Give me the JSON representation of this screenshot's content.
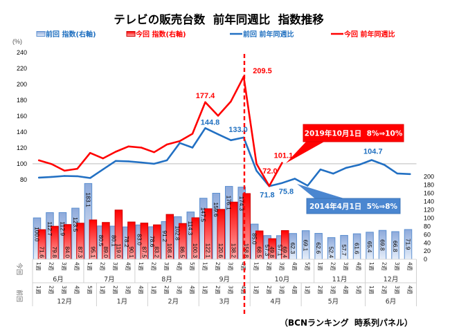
{
  "chart_data": {
    "type": "bar",
    "title": "テレビの販売台数  前年同週比  指数推移",
    "y_left": {
      "unit": "(%)",
      "range": [
        -20,
        240
      ],
      "tick_values": [
        80,
        100,
        120,
        140,
        160,
        180,
        200,
        220,
        240
      ],
      "tick_labels": [
        "80",
        "100",
        "120",
        "140",
        "160",
        "180",
        "200",
        "220",
        "240"
      ]
    },
    "y_right": {
      "range": [
        0,
        500
      ],
      "tick_values": [
        0,
        20,
        40,
        60,
        80,
        100,
        120,
        140,
        160,
        180,
        200
      ],
      "tick_labels": [
        "0",
        "20",
        "40",
        "60",
        "80",
        "100",
        "120",
        "140",
        "160",
        "180",
        "200"
      ]
    },
    "reference_line": 100,
    "grid": false,
    "x_axis": {
      "rows": [
        {
          "label": "今回",
          "groups": [
            {
              "month": "6月",
              "weeks": [
                "1週",
                "2週",
                "3週",
                "4週"
              ]
            },
            {
              "month": "7月",
              "weeks": [
                "1週",
                "2週",
                "3週",
                "4週"
              ]
            },
            {
              "month": "8月",
              "weeks": [
                "1週",
                "2週",
                "3週",
                "4週",
                "5週"
              ]
            },
            {
              "month": "9月",
              "weeks": [
                "1週",
                "2週",
                "3週",
                "4週"
              ]
            },
            {
              "month": "10月",
              "weeks": [
                "1週",
                "2週",
                "3週",
                "4週",
                "5週"
              ]
            },
            {
              "month": "11月",
              "weeks": [
                "1週",
                "2週",
                "3週",
                "4週"
              ]
            },
            {
              "month": "12月",
              "weeks": [
                "1週",
                "2週",
                "3週",
                "4週"
              ]
            }
          ]
        },
        {
          "label": "前回",
          "groups": [
            {
              "month": "12月",
              "weeks": [
                "1週",
                "2週",
                "3週",
                "4週",
                "5週"
              ]
            },
            {
              "month": "1月",
              "weeks": [
                "1週",
                "2週",
                "3週",
                "4週"
              ]
            },
            {
              "month": "2月",
              "weeks": [
                "1週",
                "2週",
                "3週",
                "4週"
              ]
            },
            {
              "month": "3月",
              "weeks": [
                "1週",
                "2週",
                "3週",
                "4週"
              ]
            },
            {
              "month": "4月",
              "weeks": [
                "1週",
                "2週",
                "3週",
                "4週"
              ]
            },
            {
              "month": "5月",
              "weeks": [
                "1週",
                "2週",
                "3週",
                "4週",
                "5週"
              ]
            },
            {
              "month": "6月",
              "weeks": [
                "1週",
                "2週",
                "3週",
                "4週"
              ]
            }
          ]
        }
      ]
    },
    "series": [
      {
        "name": "前回 指数(右軸)",
        "chart_type": "bar",
        "axis": "right",
        "color": "#8eaadb",
        "border": "#5b8fd0",
        "text_color": "#2070c0",
        "values": [
          100.0,
          112.7,
          112.9,
          123.5,
          183.1,
          80.5,
          80.1,
          78.2,
          83.0,
          78.6,
          91.2,
          102.8,
          114.3,
          147.5,
          159.6,
          176.1,
          174.3,
          85.0,
          57.3,
          57.1,
          62.3,
          69.1,
          62.6,
          52.4,
          57.7,
          61.6,
          65.4,
          69.8,
          66.8,
          71.9
        ]
      },
      {
        "name": "今回 指数(右軸)",
        "chart_type": "bar",
        "axis": "right",
        "color": "#ff0000",
        "border": "#d00000",
        "text_color": "#ff0000",
        "values": [
          71.6,
          79.8,
          84.0,
          87.3,
          95.1,
          89.0,
          119.0,
          90.1,
          87.5,
          83.2,
          108.4,
          86.5,
          100.3,
          122.1,
          120.6,
          138.2,
          158.8,
          68.5,
          49.8,
          69.4,
          null,
          null,
          null,
          null,
          null,
          null,
          null,
          null,
          null,
          null
        ]
      },
      {
        "name": "前回 前年同週比",
        "chart_type": "line",
        "axis": "left",
        "color": "#2270c3",
        "text_color": "#2070c0",
        "values": [
          82.6,
          83.5,
          84.7,
          84.3,
          82.1,
          92.8,
          103.5,
          103.0,
          101.6,
          100.0,
          104.3,
          126.1,
          120.3,
          144.8,
          137.1,
          129.6,
          133.0,
          91.3,
          71.8,
          75.8,
          81.2,
          72.5,
          92.8,
          87.6,
          94.8,
          98.6,
          104.7,
          98.6,
          87.8,
          87.0
        ]
      },
      {
        "name": "今回 前年同週比",
        "chart_type": "line",
        "axis": "left",
        "color": "#ff0000",
        "text_color": "#ff0000",
        "values": [
          104.3,
          99.5,
          91.3,
          93.7,
          113.6,
          106.7,
          115.1,
          121.8,
          120.3,
          114.5,
          124.2,
          128.5,
          137.7,
          177.4,
          160.3,
          178.3,
          209.5,
          100.0,
          72.0,
          101.1,
          null,
          null,
          null,
          null,
          null,
          null,
          null,
          null,
          null,
          null
        ]
      }
    ],
    "legend": {
      "position": "top"
    },
    "point_labels": [
      {
        "series": 3,
        "index": 13,
        "text": "177.4"
      },
      {
        "series": 3,
        "index": 16,
        "text": "209.5"
      },
      {
        "series": 3,
        "index": 18,
        "text": "72.0"
      },
      {
        "series": 3,
        "index": 19,
        "text": "101.1"
      },
      {
        "series": 2,
        "index": 13,
        "text": "144.8"
      },
      {
        "series": 2,
        "index": 16,
        "text": "133.0"
      },
      {
        "series": 2,
        "index": 18,
        "text": "71.8"
      },
      {
        "series": 2,
        "index": 19,
        "text": "75.8"
      },
      {
        "series": 2,
        "index": 26,
        "text": "104.7"
      }
    ],
    "annotations": [
      {
        "text": "2019年10月1日  8%⇒10%",
        "color": "#ff0000",
        "points_to": {
          "series": 3,
          "index": 19
        }
      },
      {
        "text": "2014年4月1日  5%⇒8%",
        "color": "#4a86d0",
        "points_to": {
          "series": 2,
          "index": 20
        }
      }
    ],
    "vertical_marker": {
      "index": 16,
      "color": "#ff0000",
      "style": "dashed"
    },
    "source": "（BCNランキング  時系列パネル）"
  }
}
